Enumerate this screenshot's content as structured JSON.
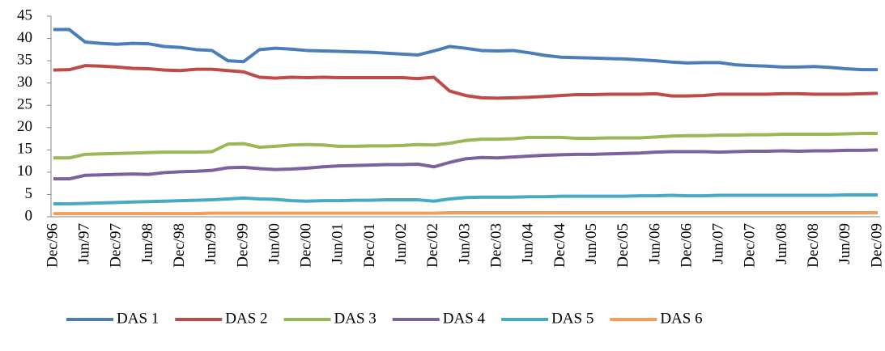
{
  "chart_data": {
    "type": "line",
    "categories": [
      "Dec/96",
      null,
      "Jun/97",
      null,
      "Dec/97",
      null,
      "Jun/98",
      null,
      "Dec/98",
      null,
      "Jun/99",
      null,
      "Dec/99",
      null,
      "Jun/00",
      null,
      "Dec/00",
      null,
      "Jun/01",
      null,
      "Dec/01",
      null,
      "Jun/02",
      null,
      "Dec/02",
      null,
      "Jun/03",
      null,
      "Dec/03",
      null,
      "Jun/04",
      null,
      "Dec/04",
      null,
      "Jun/05",
      null,
      "Dec/05",
      null,
      "Jun/06",
      null,
      "Dec/06",
      null,
      "Jun/07",
      null,
      "Dec/07",
      null,
      "Jun/08",
      null,
      "Dec/08",
      null,
      "Jun/09",
      null,
      "Dec/09"
    ],
    "series": [
      {
        "name": "DAS 1",
        "color": "#4a7ebb",
        "values": [
          42,
          42,
          39.2,
          38.9,
          38.7,
          38.9,
          38.8,
          38.2,
          38,
          37.5,
          37.3,
          35,
          34.8,
          37.5,
          37.8,
          37.6,
          37.3,
          37.2,
          37.1,
          37,
          36.9,
          36.7,
          36.5,
          36.3,
          37.2,
          38.2,
          37.8,
          37.3,
          37.2,
          37.3,
          36.8,
          36.2,
          35.8,
          35.7,
          35.6,
          35.5,
          35.4,
          35.2,
          35,
          34.7,
          34.5,
          34.6,
          34.6,
          34.1,
          33.9,
          33.8,
          33.6,
          33.6,
          33.7,
          33.5,
          33.2,
          33,
          33
        ]
      },
      {
        "name": "DAS 2",
        "color": "#be4b48",
        "values": [
          32.9,
          33,
          33.9,
          33.8,
          33.6,
          33.3,
          33.2,
          32.9,
          32.8,
          33.1,
          33.1,
          32.8,
          32.5,
          31.3,
          31.1,
          31.3,
          31.2,
          31.3,
          31.2,
          31.2,
          31.2,
          31.2,
          31.2,
          31,
          31.3,
          28.2,
          27.2,
          26.7,
          26.6,
          26.7,
          26.8,
          27,
          27.2,
          27.4,
          27.4,
          27.5,
          27.5,
          27.5,
          27.6,
          27.1,
          27.1,
          27.2,
          27.5,
          27.5,
          27.5,
          27.5,
          27.6,
          27.6,
          27.5,
          27.5,
          27.5,
          27.6,
          27.7
        ]
      },
      {
        "name": "DAS 3",
        "color": "#98b954",
        "values": [
          13.2,
          13.2,
          14,
          14.1,
          14.2,
          14.3,
          14.4,
          14.5,
          14.5,
          14.5,
          14.6,
          16.3,
          16.4,
          15.6,
          15.8,
          16.1,
          16.2,
          16.1,
          15.8,
          15.8,
          15.9,
          15.9,
          16,
          16.2,
          16.1,
          16.5,
          17.1,
          17.4,
          17.4,
          17.5,
          17.8,
          17.8,
          17.8,
          17.6,
          17.6,
          17.7,
          17.7,
          17.7,
          17.9,
          18.1,
          18.2,
          18.2,
          18.3,
          18.3,
          18.4,
          18.4,
          18.5,
          18.5,
          18.5,
          18.5,
          18.6,
          18.7,
          18.7
        ]
      },
      {
        "name": "DAS 4",
        "color": "#7d60a0",
        "values": [
          8.5,
          8.5,
          9.3,
          9.4,
          9.5,
          9.6,
          9.5,
          9.9,
          10.1,
          10.2,
          10.4,
          11,
          11.1,
          10.8,
          10.6,
          10.7,
          10.9,
          11.2,
          11.4,
          11.5,
          11.6,
          11.7,
          11.7,
          11.8,
          11.2,
          12.2,
          13,
          13.3,
          13.2,
          13.4,
          13.6,
          13.8,
          13.9,
          14,
          14,
          14.1,
          14.2,
          14.3,
          14.5,
          14.6,
          14.6,
          14.6,
          14.5,
          14.6,
          14.7,
          14.7,
          14.8,
          14.7,
          14.8,
          14.8,
          14.9,
          14.9,
          15
        ]
      },
      {
        "name": "DAS 5",
        "color": "#46aac5",
        "values": [
          2.9,
          2.9,
          3,
          3.1,
          3.2,
          3.3,
          3.4,
          3.5,
          3.6,
          3.7,
          3.8,
          4,
          4.2,
          4,
          3.9,
          3.6,
          3.5,
          3.6,
          3.6,
          3.7,
          3.7,
          3.8,
          3.8,
          3.8,
          3.5,
          4,
          4.3,
          4.4,
          4.4,
          4.4,
          4.5,
          4.5,
          4.6,
          4.6,
          4.6,
          4.6,
          4.6,
          4.7,
          4.7,
          4.8,
          4.7,
          4.7,
          4.8,
          4.8,
          4.8,
          4.8,
          4.8,
          4.8,
          4.8,
          4.8,
          4.9,
          4.9,
          4.9
        ]
      },
      {
        "name": "DAS 6",
        "color": "#f59d56",
        "values": [
          0.7,
          0.7,
          0.7,
          0.7,
          0.7,
          0.7,
          0.7,
          0.7,
          0.7,
          0.7,
          0.8,
          0.8,
          0.8,
          0.8,
          0.8,
          0.8,
          0.8,
          0.8,
          0.8,
          0.8,
          0.8,
          0.8,
          0.8,
          0.8,
          0.8,
          0.9,
          0.9,
          0.9,
          0.9,
          0.9,
          0.9,
          0.9,
          0.9,
          0.9,
          0.9,
          0.9,
          0.9,
          0.9,
          0.9,
          0.9,
          0.9,
          0.9,
          0.9,
          0.9,
          0.9,
          0.9,
          0.9,
          0.9,
          0.9,
          0.9,
          0.9,
          0.9,
          0.9
        ]
      }
    ],
    "ylim": [
      0,
      45
    ],
    "yticks": [
      0,
      5,
      10,
      15,
      20,
      25,
      30,
      35,
      40,
      45
    ],
    "grid": false
  }
}
